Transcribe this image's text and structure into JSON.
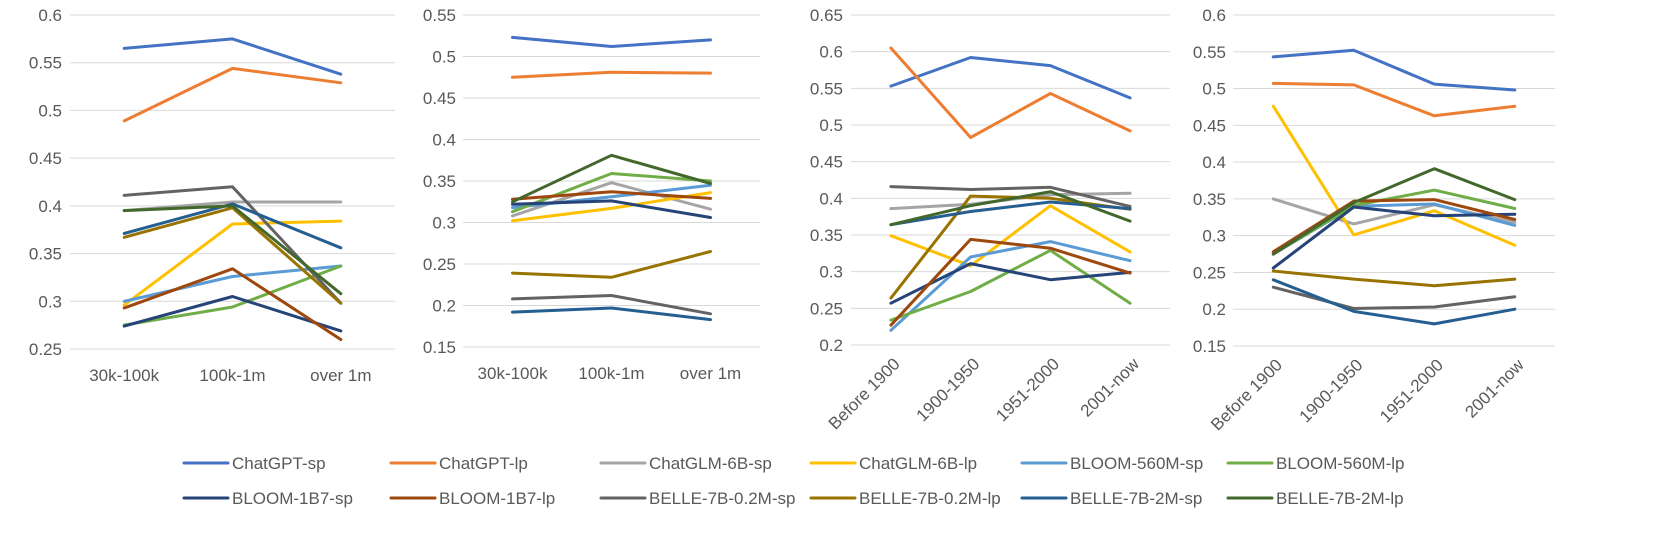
{
  "colors": {
    "ChatGPT-sp": "#4472C4",
    "ChatGPT-lp": "#ED7D31",
    "ChatGLM-6B-sp": "#A5A5A5",
    "ChatGLM-6B-lp": "#FFC000",
    "BLOOM-560M-sp": "#5B9BD5",
    "BLOOM-560M-lp": "#70AD47",
    "BLOOM-1B7-sp": "#264478",
    "BLOOM-1B7-lp": "#9E480E",
    "BELLE-7B-0.2M-sp": "#636363",
    "BELLE-7B-0.2M-lp": "#997300",
    "BELLE-7B-2M-sp": "#255E91",
    "BELLE-7B-2M-lp": "#43682B"
  },
  "legend": {
    "position": "bottom",
    "entries": [
      "ChatGPT-sp",
      "ChatGPT-lp",
      "ChatGLM-6B-sp",
      "ChatGLM-6B-lp",
      "BLOOM-560M-sp",
      "BLOOM-560M-lp",
      "BLOOM-1B7-sp",
      "BLOOM-1B7-lp",
      "BELLE-7B-0.2M-sp",
      "BELLE-7B-0.2M-lp",
      "BELLE-7B-2M-sp",
      "BELLE-7B-2M-lp"
    ]
  },
  "chart_data": [
    {
      "type": "line",
      "title": "",
      "xlabel": "",
      "ylabel": "",
      "grid": true,
      "categories": [
        "30k-100k",
        "100k-1m",
        "over 1m"
      ],
      "ylim": [
        0.25,
        0.6
      ],
      "yticks": [
        "0.25",
        "0.3",
        "0.35",
        "0.4",
        "0.45",
        "0.5",
        "0.55",
        "0.6"
      ],
      "series": [
        {
          "name": "ChatGPT-sp",
          "values": [
            0.565,
            0.575,
            0.538
          ]
        },
        {
          "name": "ChatGPT-lp",
          "values": [
            0.489,
            0.544,
            0.529
          ]
        },
        {
          "name": "ChatGLM-6B-sp",
          "values": [
            0.395,
            0.404,
            0.404
          ]
        },
        {
          "name": "ChatGLM-6B-lp",
          "values": [
            0.296,
            0.381,
            0.384
          ]
        },
        {
          "name": "BLOOM-560M-sp",
          "values": [
            0.3,
            0.326,
            0.337
          ]
        },
        {
          "name": "BLOOM-560M-lp",
          "values": [
            0.275,
            0.294,
            0.337
          ]
        },
        {
          "name": "BLOOM-1B7-sp",
          "values": [
            0.274,
            0.305,
            0.269
          ]
        },
        {
          "name": "BLOOM-1B7-lp",
          "values": [
            0.293,
            0.334,
            0.26
          ]
        },
        {
          "name": "BELLE-7B-0.2M-sp",
          "values": [
            0.411,
            0.42,
            0.298
          ]
        },
        {
          "name": "BELLE-7B-0.2M-lp",
          "values": [
            0.367,
            0.398,
            0.298
          ]
        },
        {
          "name": "BELLE-7B-2M-sp",
          "values": [
            0.371,
            0.402,
            0.356
          ]
        },
        {
          "name": "BELLE-7B-2M-lp",
          "values": [
            0.395,
            0.4,
            0.308
          ]
        }
      ]
    },
    {
      "type": "line",
      "title": "",
      "xlabel": "",
      "ylabel": "",
      "grid": true,
      "categories": [
        "30k-100k",
        "100k-1m",
        "over 1m"
      ],
      "ylim": [
        0.15,
        0.55
      ],
      "yticks": [
        "0.15",
        "0.2",
        "0.25",
        "0.3",
        "0.35",
        "0.4",
        "0.45",
        "0.5",
        "0.55"
      ],
      "series": [
        {
          "name": "ChatGPT-sp",
          "values": [
            0.523,
            0.512,
            0.52
          ]
        },
        {
          "name": "ChatGPT-lp",
          "values": [
            0.475,
            0.481,
            0.48
          ]
        },
        {
          "name": "ChatGLM-6B-sp",
          "values": [
            0.308,
            0.348,
            0.316
          ]
        },
        {
          "name": "ChatGLM-6B-lp",
          "values": [
            0.302,
            0.317,
            0.336
          ]
        },
        {
          "name": "BLOOM-560M-sp",
          "values": [
            0.318,
            0.331,
            0.345
          ]
        },
        {
          "name": "BLOOM-560M-lp",
          "values": [
            0.313,
            0.359,
            0.35
          ]
        },
        {
          "name": "BLOOM-1B7-sp",
          "values": [
            0.322,
            0.326,
            0.306
          ]
        },
        {
          "name": "BLOOM-1B7-lp",
          "values": [
            0.328,
            0.337,
            0.329
          ]
        },
        {
          "name": "BELLE-7B-0.2M-sp",
          "values": [
            0.208,
            0.212,
            0.19
          ]
        },
        {
          "name": "BELLE-7B-0.2M-lp",
          "values": [
            0.239,
            0.234,
            0.265
          ]
        },
        {
          "name": "BELLE-7B-2M-sp",
          "values": [
            0.192,
            0.197,
            0.183
          ]
        },
        {
          "name": "BELLE-7B-2M-lp",
          "values": [
            0.325,
            0.381,
            0.347
          ]
        }
      ]
    },
    {
      "type": "line",
      "title": "",
      "xlabel": "",
      "ylabel": "",
      "grid": true,
      "categories": [
        "Before 1900",
        "1900-1950",
        "1951-2000",
        "2001-now"
      ],
      "ylim": [
        0.2,
        0.65
      ],
      "yticks": [
        "0.2",
        "0.25",
        "0.3",
        "0.35",
        "0.4",
        "0.45",
        "0.5",
        "0.55",
        "0.6",
        "0.65"
      ],
      "series": [
        {
          "name": "ChatGPT-sp",
          "values": [
            0.553,
            0.592,
            0.581,
            0.537
          ]
        },
        {
          "name": "ChatGPT-lp",
          "values": [
            0.605,
            0.483,
            0.543,
            0.492
          ]
        },
        {
          "name": "ChatGLM-6B-sp",
          "values": [
            0.386,
            0.392,
            0.405,
            0.407
          ]
        },
        {
          "name": "ChatGLM-6B-lp",
          "values": [
            0.349,
            0.308,
            0.39,
            0.327
          ]
        },
        {
          "name": "BLOOM-560M-sp",
          "values": [
            0.22,
            0.32,
            0.341,
            0.315
          ]
        },
        {
          "name": "BLOOM-560M-lp",
          "values": [
            0.234,
            0.273,
            0.329,
            0.257
          ]
        },
        {
          "name": "BLOOM-1B7-sp",
          "values": [
            0.257,
            0.311,
            0.289,
            0.299
          ]
        },
        {
          "name": "BLOOM-1B7-lp",
          "values": [
            0.227,
            0.344,
            0.332,
            0.298
          ]
        },
        {
          "name": "BELLE-7B-0.2M-sp",
          "values": [
            0.416,
            0.412,
            0.415,
            0.389
          ]
        },
        {
          "name": "BELLE-7B-0.2M-lp",
          "values": [
            0.264,
            0.403,
            0.4,
            0.385
          ]
        },
        {
          "name": "BELLE-7B-2M-sp",
          "values": [
            0.364,
            0.382,
            0.395,
            0.386
          ]
        },
        {
          "name": "BELLE-7B-2M-lp",
          "values": [
            0.364,
            0.39,
            0.409,
            0.369
          ]
        }
      ]
    },
    {
      "type": "line",
      "title": "",
      "xlabel": "",
      "ylabel": "",
      "grid": true,
      "categories": [
        "Before 1900",
        "1900-1950",
        "1951-2000",
        "2001-now"
      ],
      "ylim": [
        0.15,
        0.6
      ],
      "yticks": [
        "0.15",
        "0.2",
        "0.25",
        "0.3",
        "0.35",
        "0.4",
        "0.45",
        "0.5",
        "0.55",
        "0.6"
      ],
      "series": [
        {
          "name": "ChatGPT-sp",
          "values": [
            0.543,
            0.552,
            0.506,
            0.498
          ]
        },
        {
          "name": "ChatGPT-lp",
          "values": [
            0.507,
            0.505,
            0.463,
            0.476
          ]
        },
        {
          "name": "ChatGLM-6B-sp",
          "values": [
            0.35,
            0.316,
            0.342,
            0.318
          ]
        },
        {
          "name": "ChatGLM-6B-lp",
          "values": [
            0.476,
            0.301,
            0.334,
            0.287
          ]
        },
        {
          "name": "BLOOM-560M-sp",
          "values": [
            0.275,
            0.34,
            0.343,
            0.314
          ]
        },
        {
          "name": "BLOOM-560M-lp",
          "values": [
            0.275,
            0.341,
            0.362,
            0.337
          ]
        },
        {
          "name": "BLOOM-1B7-sp",
          "values": [
            0.256,
            0.339,
            0.327,
            0.329
          ]
        },
        {
          "name": "BLOOM-1B7-lp",
          "values": [
            0.278,
            0.347,
            0.349,
            0.322
          ]
        },
        {
          "name": "BELLE-7B-0.2M-sp",
          "values": [
            0.23,
            0.201,
            0.203,
            0.217
          ]
        },
        {
          "name": "BELLE-7B-0.2M-lp",
          "values": [
            0.252,
            0.241,
            0.232,
            0.241
          ]
        },
        {
          "name": "BELLE-7B-2M-sp",
          "values": [
            0.24,
            0.197,
            0.18,
            0.2
          ]
        },
        {
          "name": "BELLE-7B-2M-lp",
          "values": [
            0.275,
            0.345,
            0.391,
            0.349
          ]
        }
      ]
    }
  ]
}
